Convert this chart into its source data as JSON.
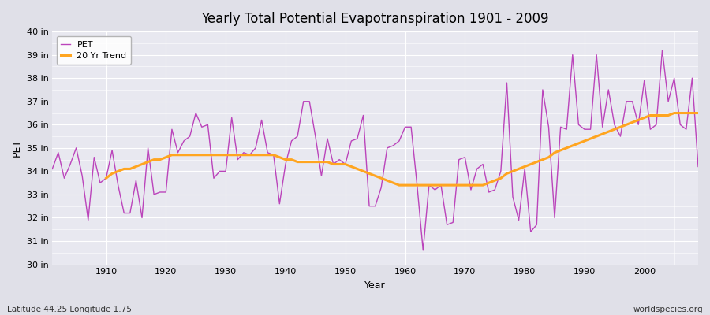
{
  "title": "Yearly Total Potential Evapotranspiration 1901 - 2009",
  "xlabel": "Year",
  "ylabel": "PET",
  "footnote_left": "Latitude 44.25 Longitude 1.75",
  "footnote_right": "worldspecies.org",
  "pet_color": "#BB44BB",
  "trend_color": "#FFA520",
  "bg_outer": "#E0E0E8",
  "bg_inner": "#E8E8F0",
  "grid_color": "#FFFFFF",
  "ylim": [
    30,
    40
  ],
  "xlim": [
    1901,
    2009
  ],
  "yticks": [
    30,
    31,
    32,
    33,
    34,
    35,
    36,
    37,
    38,
    39,
    40
  ],
  "ytick_labels": [
    "30 in",
    "31 in",
    "32 in",
    "33 in",
    "34 in",
    "35 in",
    "36 in",
    "37 in",
    "38 in",
    "39 in",
    "40 in"
  ],
  "xticks": [
    1910,
    1920,
    1930,
    1940,
    1950,
    1960,
    1970,
    1980,
    1990,
    2000
  ],
  "years": [
    1901,
    1902,
    1903,
    1904,
    1905,
    1906,
    1907,
    1908,
    1909,
    1910,
    1911,
    1912,
    1913,
    1914,
    1915,
    1916,
    1917,
    1918,
    1919,
    1920,
    1921,
    1922,
    1923,
    1924,
    1925,
    1926,
    1927,
    1928,
    1929,
    1930,
    1931,
    1932,
    1933,
    1934,
    1935,
    1936,
    1937,
    1938,
    1939,
    1940,
    1941,
    1942,
    1943,
    1944,
    1945,
    1946,
    1947,
    1948,
    1949,
    1950,
    1951,
    1952,
    1953,
    1954,
    1955,
    1956,
    1957,
    1958,
    1959,
    1960,
    1961,
    1962,
    1963,
    1964,
    1965,
    1966,
    1967,
    1968,
    1969,
    1970,
    1971,
    1972,
    1973,
    1974,
    1975,
    1976,
    1977,
    1978,
    1979,
    1980,
    1981,
    1982,
    1983,
    1984,
    1985,
    1986,
    1987,
    1988,
    1989,
    1990,
    1991,
    1992,
    1993,
    1994,
    1995,
    1996,
    1997,
    1998,
    1999,
    2000,
    2001,
    2002,
    2003,
    2004,
    2005,
    2006,
    2007,
    2008,
    2009
  ],
  "pet_values": [
    34.1,
    34.8,
    33.7,
    34.3,
    35.0,
    33.8,
    31.9,
    34.6,
    33.5,
    33.7,
    34.9,
    33.4,
    32.2,
    32.2,
    33.6,
    32.0,
    35.0,
    33.0,
    33.1,
    33.1,
    35.8,
    34.8,
    35.3,
    35.5,
    36.5,
    35.9,
    36.0,
    33.7,
    34.0,
    34.0,
    36.3,
    34.5,
    34.8,
    34.7,
    35.0,
    36.2,
    34.8,
    34.7,
    32.6,
    34.3,
    35.3,
    35.5,
    37.0,
    37.0,
    35.5,
    33.8,
    35.4,
    34.3,
    34.5,
    34.3,
    35.3,
    35.4,
    36.4,
    32.5,
    32.5,
    33.3,
    35.0,
    35.1,
    35.3,
    35.9,
    35.9,
    33.4,
    30.6,
    33.4,
    33.2,
    33.4,
    31.7,
    31.8,
    34.5,
    34.6,
    33.2,
    34.1,
    34.3,
    33.1,
    33.2,
    34.0,
    37.8,
    32.9,
    31.9,
    34.1,
    31.4,
    31.7,
    37.5,
    35.9,
    32.0,
    35.9,
    35.8,
    39.0,
    36.0,
    35.8,
    35.8,
    39.0,
    35.9,
    37.5,
    36.0,
    35.5,
    37.0,
    37.0,
    36.0,
    37.9,
    35.8,
    36.0,
    39.2,
    37.0,
    38.0,
    36.0,
    35.8,
    38.0,
    34.2
  ],
  "trend_years": [
    1910,
    1911,
    1912,
    1913,
    1914,
    1915,
    1916,
    1917,
    1918,
    1919,
    1920,
    1921,
    1922,
    1923,
    1924,
    1925,
    1926,
    1927,
    1928,
    1929,
    1930,
    1931,
    1932,
    1933,
    1934,
    1935,
    1936,
    1937,
    1938,
    1939,
    1940,
    1941,
    1942,
    1943,
    1944,
    1945,
    1946,
    1947,
    1948,
    1949,
    1950,
    1951,
    1952,
    1953,
    1954,
    1955,
    1956,
    1957,
    1958,
    1959,
    1960,
    1961,
    1962,
    1963,
    1964,
    1965,
    1966,
    1967,
    1968,
    1969,
    1970,
    1971,
    1972,
    1973,
    1974,
    1975,
    1976,
    1977,
    1978,
    1979,
    1980,
    1981,
    1982,
    1983,
    1984,
    1985,
    1986,
    1987,
    1988,
    1989,
    1990,
    1991,
    1992,
    1993,
    1994,
    1995,
    1996,
    1997,
    1998,
    1999,
    2000,
    2001,
    2002,
    2003,
    2004,
    2005,
    2006,
    2007,
    2008,
    2009
  ],
  "trend_values": [
    33.7,
    33.9,
    34.0,
    34.1,
    34.1,
    34.2,
    34.3,
    34.4,
    34.5,
    34.5,
    34.6,
    34.7,
    34.7,
    34.7,
    34.7,
    34.7,
    34.7,
    34.7,
    34.7,
    34.7,
    34.7,
    34.7,
    34.7,
    34.7,
    34.7,
    34.7,
    34.7,
    34.7,
    34.7,
    34.6,
    34.5,
    34.5,
    34.4,
    34.4,
    34.4,
    34.4,
    34.4,
    34.4,
    34.3,
    34.3,
    34.3,
    34.2,
    34.1,
    34.0,
    33.9,
    33.8,
    33.7,
    33.6,
    33.5,
    33.4,
    33.4,
    33.4,
    33.4,
    33.4,
    33.4,
    33.4,
    33.4,
    33.4,
    33.4,
    33.4,
    33.4,
    33.4,
    33.4,
    33.4,
    33.5,
    33.6,
    33.7,
    33.9,
    34.0,
    34.1,
    34.2,
    34.3,
    34.4,
    34.5,
    34.6,
    34.8,
    34.9,
    35.0,
    35.1,
    35.2,
    35.3,
    35.4,
    35.5,
    35.6,
    35.7,
    35.8,
    35.9,
    36.0,
    36.1,
    36.2,
    36.3,
    36.4,
    36.4,
    36.4,
    36.4,
    36.5,
    36.5,
    36.5,
    36.5,
    36.5
  ]
}
